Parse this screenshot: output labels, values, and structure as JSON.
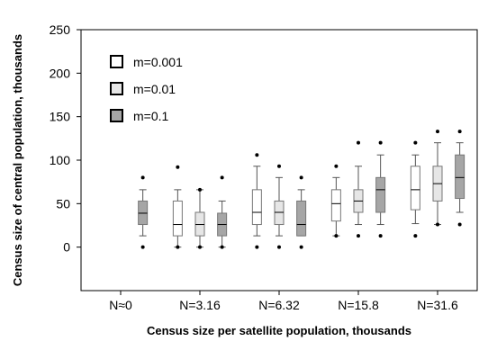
{
  "chart_data": {
    "type": "box",
    "xlabel": "Census size per satellite population, thousands",
    "ylabel": "Census size of central population, thousands",
    "ylim": [
      -50,
      250
    ],
    "yticks": [
      0,
      50,
      100,
      150,
      200,
      250
    ],
    "grid": false,
    "legend": {
      "placement": "top-left",
      "entries": [
        {
          "name": "m=0.001",
          "color": "#ffffff"
        },
        {
          "name": "m=0.01",
          "color": "#e6e6e6"
        },
        {
          "name": "m=0.1",
          "color": "#a6a6a6"
        }
      ]
    },
    "categories": [
      "N≈0",
      "N=3.16",
      "N=6.32",
      "N=15.8",
      "N=31.6"
    ],
    "boxes": [
      {
        "category": 0,
        "series": 2,
        "whisker_low": 13,
        "q1": 26,
        "median": 39,
        "q3": 53,
        "whisker_high": 66,
        "outliers": [
          0,
          80
        ]
      },
      {
        "category": 1,
        "series": 0,
        "whisker_low": 0,
        "q1": 13,
        "median": 26,
        "q3": 53,
        "whisker_high": 66,
        "outliers": [
          0,
          92
        ]
      },
      {
        "category": 1,
        "series": 1,
        "whisker_low": 0,
        "q1": 13,
        "median": 26,
        "q3": 40,
        "whisker_high": 66,
        "outliers": [
          0,
          66
        ]
      },
      {
        "category": 1,
        "series": 2,
        "whisker_low": 0,
        "q1": 13,
        "median": 26,
        "q3": 39,
        "whisker_high": 53,
        "outliers": [
          0,
          80
        ]
      },
      {
        "category": 2,
        "series": 0,
        "whisker_low": 13,
        "q1": 26,
        "median": 40,
        "q3": 66,
        "whisker_high": 93,
        "outliers": [
          0,
          106
        ]
      },
      {
        "category": 2,
        "series": 1,
        "whisker_low": 13,
        "q1": 26,
        "median": 40,
        "q3": 53,
        "whisker_high": 80,
        "outliers": [
          0,
          93
        ]
      },
      {
        "category": 2,
        "series": 2,
        "whisker_low": 13,
        "q1": 13,
        "median": 26,
        "q3": 53,
        "whisker_high": 66,
        "outliers": [
          0,
          80
        ]
      },
      {
        "category": 3,
        "series": 0,
        "whisker_low": 13,
        "q1": 30,
        "median": 50,
        "q3": 66,
        "whisker_high": 80,
        "outliers": [
          13,
          93
        ]
      },
      {
        "category": 3,
        "series": 1,
        "whisker_low": 26,
        "q1": 40,
        "median": 53,
        "q3": 66,
        "whisker_high": 93,
        "outliers": [
          13,
          120
        ]
      },
      {
        "category": 3,
        "series": 2,
        "whisker_low": 26,
        "q1": 40,
        "median": 66,
        "q3": 80,
        "whisker_high": 106,
        "outliers": [
          13,
          120
        ]
      },
      {
        "category": 4,
        "series": 0,
        "whisker_low": 27,
        "q1": 43,
        "median": 66,
        "q3": 93,
        "whisker_high": 106,
        "outliers": [
          13,
          120
        ]
      },
      {
        "category": 4,
        "series": 1,
        "whisker_low": 26,
        "q1": 53,
        "median": 73,
        "q3": 93,
        "whisker_high": 120,
        "outliers": [
          26,
          133
        ]
      },
      {
        "category": 4,
        "series": 2,
        "whisker_low": 40,
        "q1": 56,
        "median": 80,
        "q3": 106,
        "whisker_high": 120,
        "outliers": [
          26,
          133
        ]
      }
    ]
  }
}
